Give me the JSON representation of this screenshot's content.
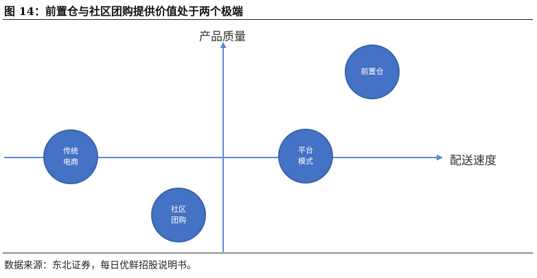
{
  "figure": {
    "title": "图 14：前置仓与社区团购提供价值处于两个极端",
    "source": "数据来源：东北证券，每日优鲜招股说明书。"
  },
  "axes": {
    "y_label": "产品质量",
    "x_label": "配送速度"
  },
  "nodes": [
    {
      "lines": [
        "前置仓"
      ]
    },
    {
      "lines": [
        "传统",
        "电商"
      ]
    },
    {
      "lines": [
        "平台",
        "模式"
      ]
    },
    {
      "lines": [
        "社区",
        "团购"
      ]
    }
  ],
  "colors": {
    "node_fill": "#4472c4",
    "node_stroke": "#3a62ab",
    "axis": "#5b86d6"
  }
}
